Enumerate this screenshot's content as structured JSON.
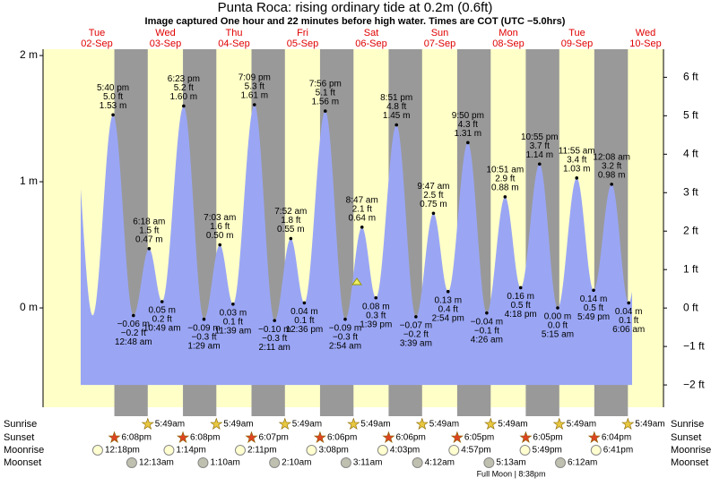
{
  "chart_data": {
    "type": "tide",
    "title": "Punta Roca: rising  ordinary tide at 0.2m (0.6ft)",
    "subtitle": "Image captured One hour and 22 minutes before high water. Times are COT (UTC −5.0hrs)",
    "ylim": [
      -0.787,
      2.05
    ],
    "yticks": [
      {
        "value": 2,
        "label": "2 m"
      },
      {
        "value": 1,
        "label": "1 m"
      },
      {
        "value": 0,
        "label": "0 m"
      }
    ],
    "y2lim": [
      -2.58,
      6.73
    ],
    "y2ticks": [
      {
        "value": 6,
        "label": "6 ft"
      },
      {
        "value": 5,
        "label": "5 ft"
      },
      {
        "value": 4,
        "label": "4 ft"
      },
      {
        "value": 3,
        "label": "3 ft"
      },
      {
        "value": 2,
        "label": "2 ft"
      },
      {
        "value": 1,
        "label": "1 ft"
      },
      {
        "value": 0,
        "label": "0 ft"
      },
      {
        "value": -1,
        "label": "−1 ft"
      },
      {
        "value": -2,
        "label": "−2 ft"
      }
    ],
    "color": "#9aa6f4",
    "row_labels": [
      "Sunrise",
      "Sunset",
      "Moonrise",
      "Moonset"
    ],
    "moon_phase": "Full Moon | 8:38pm",
    "days": [
      {
        "dow": "Tue",
        "date": "02-Sep",
        "events": [
          {
            "time": "5:40 pm",
            "ft": "5.0 ft",
            "height": 1.53,
            "height_label": "1.53 m"
          }
        ],
        "sunset": "6:08pm",
        "moonrise": "12:18pm"
      },
      {
        "dow": "Wed",
        "date": "03-Sep",
        "events": [
          {
            "time": "12:48 am",
            "ft": "−0.2 ft",
            "height": -0.06,
            "height_label": "−0.06 m"
          },
          {
            "time": "6:18 am",
            "ft": "1.5 ft",
            "height": 0.47,
            "height_label": "0.47 m"
          },
          {
            "time": "10:49 am",
            "ft": "0.2 ft",
            "height": 0.05,
            "height_label": "0.05 m"
          },
          {
            "time": "6:23 pm",
            "ft": "5.2 ft",
            "height": 1.6,
            "height_label": "1.60 m"
          }
        ],
        "sunrise": "5:49am",
        "sunset": "6:08pm",
        "moonrise": "1:14pm",
        "moonset": "12:13am"
      },
      {
        "dow": "Thu",
        "date": "04-Sep",
        "events": [
          {
            "time": "1:29 am",
            "ft": "−0.3 ft",
            "height": -0.09,
            "height_label": "−0.09 m"
          },
          {
            "time": "7:03 am",
            "ft": "1.6 ft",
            "height": 0.5,
            "height_label": "0.50 m"
          },
          {
            "time": "11:39 am",
            "ft": "0.1 ft",
            "height": 0.03,
            "height_label": "0.03 m"
          },
          {
            "time": "7:09 pm",
            "ft": "5.3 ft",
            "height": 1.61,
            "height_label": "1.61 m"
          }
        ],
        "sunrise": "5:49am",
        "sunset": "6:07pm",
        "moonrise": "2:11pm",
        "moonset": "1:10am"
      },
      {
        "dow": "Fri",
        "date": "05-Sep",
        "events": [
          {
            "time": "2:11 am",
            "ft": "−0.3 ft",
            "height": -0.1,
            "height_label": "−0.10 m"
          },
          {
            "time": "7:52 am",
            "ft": "1.8 ft",
            "height": 0.55,
            "height_label": "0.55 m"
          },
          {
            "time": "12:36 pm",
            "ft": "0.1 ft",
            "height": 0.04,
            "height_label": "0.04 m"
          },
          {
            "time": "7:56 pm",
            "ft": "5.1 ft",
            "height": 1.56,
            "height_label": "1.56 m"
          }
        ],
        "sunrise": "5:49am",
        "sunset": "6:06pm",
        "moonrise": "3:08pm",
        "moonset": "2:10am"
      },
      {
        "dow": "Sat",
        "date": "06-Sep",
        "events": [
          {
            "time": "2:54 am",
            "ft": "−0.3 ft",
            "height": -0.09,
            "height_label": "−0.09 m"
          },
          {
            "time": "8:47 am",
            "ft": "2.1 ft",
            "height": 0.64,
            "height_label": "0.64 m"
          },
          {
            "time": "1:39 pm",
            "ft": "0.3 ft",
            "height": 0.08,
            "height_label": "0.08 m"
          },
          {
            "time": "8:51 pm",
            "ft": "4.8 ft",
            "height": 1.45,
            "height_label": "1.45 m"
          }
        ],
        "sunrise": "5:49am",
        "sunset": "6:06pm",
        "moonrise": "4:03pm",
        "moonset": "3:11am"
      },
      {
        "dow": "Sun",
        "date": "07-Sep",
        "events": [
          {
            "time": "3:39 am",
            "ft": "−0.2 ft",
            "height": -0.07,
            "height_label": "−0.07 m"
          },
          {
            "time": "9:47 am",
            "ft": "2.5 ft",
            "height": 0.75,
            "height_label": "0.75 m"
          },
          {
            "time": "2:54 pm",
            "ft": "0.4 ft",
            "height": 0.13,
            "height_label": "0.13 m"
          },
          {
            "time": "9:50 pm",
            "ft": "4.3 ft",
            "height": 1.31,
            "height_label": "1.31 m"
          }
        ],
        "sunrise": "5:49am",
        "sunset": "6:05pm",
        "moonrise": "4:57pm",
        "moonset": "4:12am"
      },
      {
        "dow": "Mon",
        "date": "08-Sep",
        "events": [
          {
            "time": "4:26 am",
            "ft": "−0.1 ft",
            "height": -0.04,
            "height_label": "−0.04 m"
          },
          {
            "time": "10:51 am",
            "ft": "2.9 ft",
            "height": 0.88,
            "height_label": "0.88 m"
          },
          {
            "time": "4:18 pm",
            "ft": "0.5 ft",
            "height": 0.16,
            "height_label": "0.16 m"
          },
          {
            "time": "10:55 pm",
            "ft": "3.7 ft",
            "height": 1.14,
            "height_label": "1.14 m"
          }
        ],
        "sunrise": "5:49am",
        "sunset": "6:05pm",
        "moonrise": "5:49pm",
        "moonset": "5:13am"
      },
      {
        "dow": "Tue",
        "date": "09-Sep",
        "events": [
          {
            "time": "5:15 am",
            "ft": "0.0 ft",
            "height": 0.0,
            "height_label": "0.00 m"
          },
          {
            "time": "11:55 am",
            "ft": "3.4 ft",
            "height": 1.03,
            "height_label": "1.03 m"
          },
          {
            "time": "5:49 pm",
            "ft": "0.5 ft",
            "height": 0.14,
            "height_label": "0.14 m"
          }
        ],
        "sunrise": "5:49am",
        "sunset": "6:04pm",
        "moonrise": "6:41pm",
        "moonset": "6:12am"
      },
      {
        "dow": "Wed",
        "date": "10-Sep",
        "events": [
          {
            "time": "12:08 am",
            "ft": "3.2 ft",
            "height": 0.98,
            "height_label": "0.98 m"
          },
          {
            "time": "6:06 am",
            "ft": "0.1 ft",
            "height": 0.04,
            "height_label": "0.04 m"
          }
        ],
        "sunrise": "5:49am"
      }
    ]
  }
}
